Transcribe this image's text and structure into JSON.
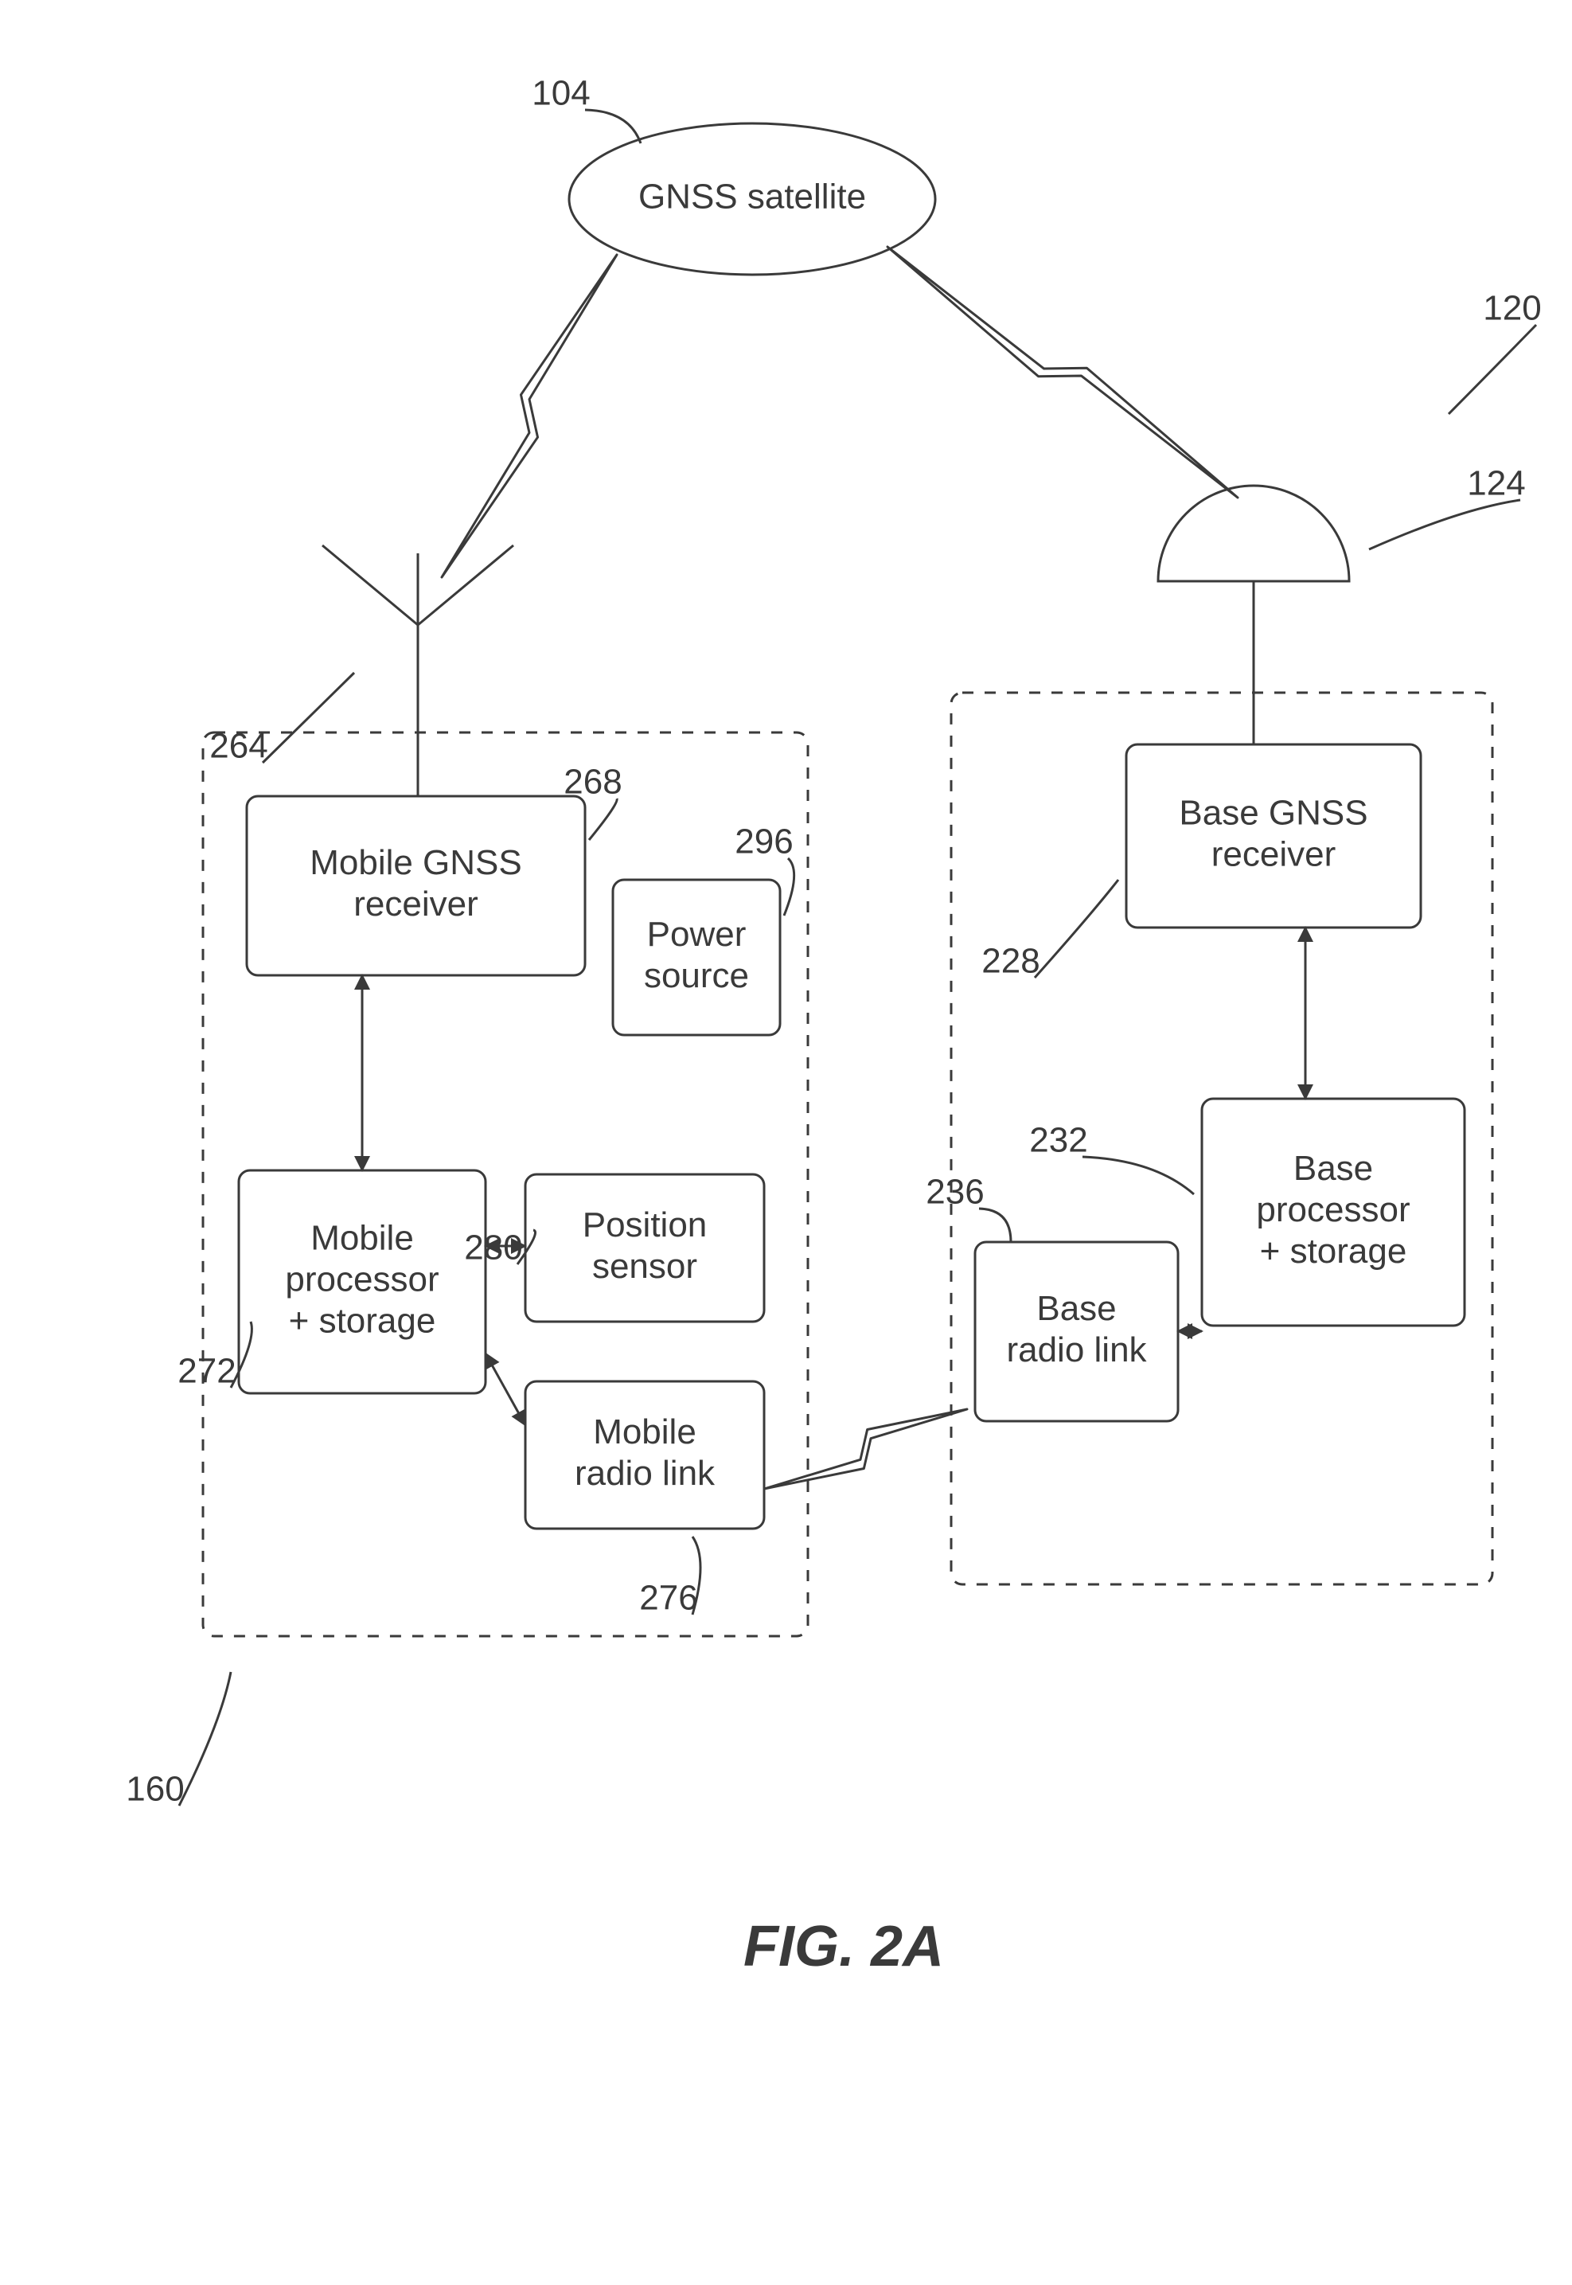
{
  "figure_label": "FIG. 2A",
  "satellite": {
    "label": "GNSS satellite",
    "ref": "104"
  },
  "base": {
    "group_ref": "120",
    "antenna_ref": "124",
    "receiver": {
      "label1": "Base GNSS",
      "label2": "receiver",
      "ref": "228"
    },
    "processor": {
      "label1": "Base",
      "label2": "processor",
      "label3": "+ storage",
      "ref": "232"
    },
    "radio": {
      "label1": "Base",
      "label2": "radio link",
      "ref": "236"
    }
  },
  "mobile": {
    "group_ref": "160",
    "antenna_ref": "264",
    "receiver": {
      "label1": "Mobile GNSS",
      "label2": "receiver",
      "ref": "268"
    },
    "processor": {
      "label1": "Mobile",
      "label2": "processor",
      "label3": "+ storage",
      "ref": "272"
    },
    "position": {
      "label1": "Position",
      "label2": "sensor",
      "ref": "280"
    },
    "radio": {
      "label1": "Mobile",
      "label2": "radio link",
      "ref": "276"
    },
    "power": {
      "label1": "Power",
      "label2": "source",
      "ref": "296"
    }
  },
  "style": {
    "stroke": "#3a3a3a",
    "stroke_width": 3,
    "box_rx": 14,
    "font_size_box": 44,
    "font_size_ref": 44,
    "font_size_fig": 72,
    "font_family_fig": "Georgia, 'Times New Roman', serif",
    "font_style_fig": "italic",
    "font_weight_fig": "bold",
    "line_height": 52
  }
}
